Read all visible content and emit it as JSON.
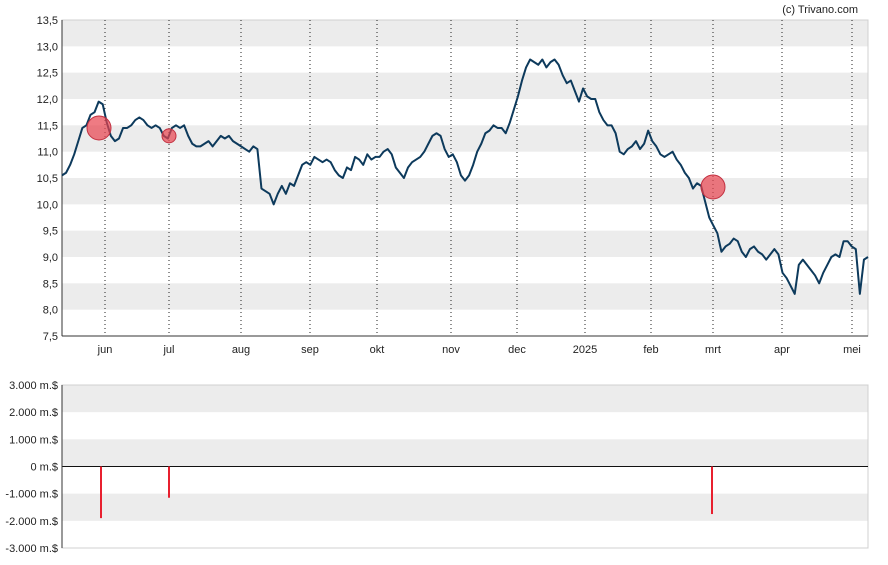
{
  "attribution": "(c) Trivano.com",
  "colors": {
    "price_line": "#0d3a5c",
    "marker_fill": "#e8434f",
    "insider_bar": "#e8202f",
    "band": "#ececec",
    "gridline": "#222222"
  },
  "chart_data": [
    {
      "type": "line",
      "title": "",
      "xlabel": "",
      "ylabel": "",
      "ylim": [
        7.5,
        13.5
      ],
      "y_ticks": [
        "13,5",
        "13,0",
        "12,5",
        "12,0",
        "11,5",
        "11,0",
        "10,5",
        "10,0",
        "9,5",
        "9,0",
        "8,5",
        "8,0",
        "7,5"
      ],
      "x_ticks": [
        "jun",
        "jul",
        "aug",
        "sep",
        "okt",
        "nov",
        "dec",
        "2025",
        "feb",
        "mrt",
        "apr",
        "mei"
      ],
      "grid": true,
      "series": [
        {
          "values": [
            10.55,
            10.6,
            10.75,
            10.95,
            11.2,
            11.45,
            11.5,
            11.7,
            11.75,
            11.95,
            11.9,
            11.55,
            11.3,
            11.2,
            11.25,
            11.45,
            11.45,
            11.5,
            11.6,
            11.65,
            11.6,
            11.5,
            11.45,
            11.5,
            11.45,
            11.3,
            11.25,
            11.45,
            11.5,
            11.45,
            11.5,
            11.3,
            11.15,
            11.1,
            11.1,
            11.15,
            11.2,
            11.1,
            11.2,
            11.3,
            11.25,
            11.3,
            11.2,
            11.15,
            11.1,
            11.05,
            11.0,
            11.1,
            11.05,
            10.3,
            10.25,
            10.2,
            10.0,
            10.2,
            10.35,
            10.2,
            10.4,
            10.35,
            10.55,
            10.75,
            10.8,
            10.75,
            10.9,
            10.85,
            10.8,
            10.85,
            10.8,
            10.65,
            10.55,
            10.5,
            10.7,
            10.65,
            10.9,
            10.85,
            10.75,
            10.95,
            10.85,
            10.9,
            10.9,
            11.0,
            11.05,
            10.95,
            10.7,
            10.6,
            10.5,
            10.7,
            10.8,
            10.85,
            10.9,
            11.0,
            11.15,
            11.3,
            11.35,
            11.3,
            11.05,
            10.9,
            10.95,
            10.8,
            10.55,
            10.45,
            10.55,
            10.75,
            11.0,
            11.15,
            11.35,
            11.4,
            11.5,
            11.45,
            11.45,
            11.35,
            11.55,
            11.8,
            12.05,
            12.35,
            12.6,
            12.75,
            12.7,
            12.65,
            12.75,
            12.6,
            12.7,
            12.75,
            12.65,
            12.45,
            12.3,
            12.35,
            12.15,
            11.95,
            12.2,
            12.05,
            12.0,
            12.0,
            11.75,
            11.6,
            11.5,
            11.5,
            11.35,
            11.0,
            10.95,
            11.05,
            11.1,
            11.2,
            11.05,
            11.15,
            11.4,
            11.2,
            11.1,
            10.95,
            10.9,
            10.95,
            11.0,
            10.85,
            10.75,
            10.6,
            10.5,
            10.3,
            10.4,
            10.35,
            10.05,
            9.75,
            9.6,
            9.45,
            9.1,
            9.2,
            9.25,
            9.35,
            9.3,
            9.1,
            9.0,
            9.15,
            9.2,
            9.1,
            9.05,
            8.95,
            9.05,
            9.15,
            9.05,
            8.7,
            8.6,
            8.45,
            8.3,
            8.85,
            8.95,
            8.85,
            8.75,
            8.65,
            8.5,
            8.7,
            8.85,
            9.0,
            9.05,
            9.0,
            9.3,
            9.3,
            9.2,
            9.15,
            8.3,
            8.95,
            9.0
          ]
        }
      ],
      "markers": [
        {
          "label": "jun",
          "value": 11.45,
          "size": "large"
        },
        {
          "label": "jul",
          "value": 11.3,
          "size": "small"
        },
        {
          "label": "mrt",
          "value": 10.33,
          "size": "large"
        }
      ]
    },
    {
      "type": "bar",
      "title": "",
      "xlabel": "",
      "ylabel": "",
      "ylim": [
        -3000,
        3000
      ],
      "y_ticks": [
        "3.000 m.$",
        "2.000 m.$",
        "1.000 m.$",
        "0 m.$",
        "-1.000 m.$",
        "-2.000 m.$",
        "-3.000 m.$"
      ],
      "grid": true,
      "bars": [
        {
          "label": "jun",
          "value": -1900
        },
        {
          "label": "jul",
          "value": -1150
        },
        {
          "label": "mrt",
          "value": -1750
        }
      ]
    }
  ]
}
